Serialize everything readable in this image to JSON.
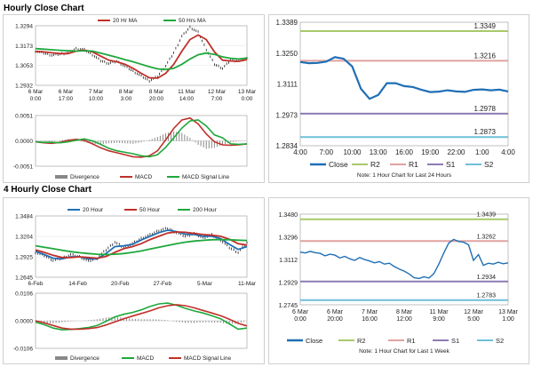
{
  "sections": [
    {
      "title": "Hourly Close Chart"
    },
    {
      "title": "4 Hourly Close Chart"
    }
  ],
  "chart_data": [
    {
      "type": "line",
      "id": "hourly_price",
      "title": "",
      "xlabel": "",
      "ylabel": "",
      "ylim": [
        1.2932,
        1.3294
      ],
      "yticks": [
        "1.3294",
        "1.3173",
        "1.3053",
        "1.2932"
      ],
      "xticks": [
        "6 Mar\n0:00",
        "6 Mar\n17:00",
        "7 Mar\n10:00",
        "8 Mar\n3:00",
        "8 Mar\n20:00",
        "11 Mar\n14:00",
        "12 Mar\n7:00",
        "13 Mar\n0:00"
      ],
      "legend": [
        "20 Hr MA",
        "50 Hrs MA"
      ],
      "series": [
        {
          "name": "Price",
          "color": "#000000",
          "values": [
            1.314,
            1.3128,
            1.3115,
            1.3122,
            1.313,
            1.3155,
            1.3148,
            1.3118,
            1.3082,
            1.3065,
            1.3078,
            1.3048,
            1.3018,
            1.2988,
            1.296,
            1.2985,
            1.305,
            1.313,
            1.323,
            1.3285,
            1.3255,
            1.315,
            1.306,
            1.3035,
            1.3085,
            1.308,
            1.3095
          ]
        },
        {
          "name": "20 Hr MA",
          "color": "#c0302a",
          "values": [
            1.3138,
            1.3135,
            1.313,
            1.3125,
            1.3125,
            1.314,
            1.3146,
            1.3135,
            1.311,
            1.3085,
            1.3075,
            1.306,
            1.3035,
            1.3005,
            1.2978,
            1.2975,
            1.3005,
            1.306,
            1.314,
            1.321,
            1.3238,
            1.321,
            1.3135,
            1.3085,
            1.308,
            1.3078,
            1.3088
          ]
        },
        {
          "name": "50 Hrs MA",
          "color": "#1fa83c",
          "values": [
            1.3155,
            1.3152,
            1.3148,
            1.3145,
            1.3142,
            1.314,
            1.3142,
            1.314,
            1.3128,
            1.3115,
            1.3102,
            1.3088,
            1.3075,
            1.306,
            1.3045,
            1.3032,
            1.3028,
            1.3035,
            1.306,
            1.3092,
            1.3118,
            1.3128,
            1.312,
            1.3105,
            1.3096,
            1.3092,
            1.3098
          ]
        }
      ]
    },
    {
      "type": "line",
      "id": "hourly_macd",
      "ylim": [
        -0.0051,
        0.0051
      ],
      "yticks": [
        "0.0051",
        "0.0000",
        "-0.0051"
      ],
      "legend": [
        "Divergence",
        "MACD",
        "MACD Signal Line"
      ],
      "series": [
        {
          "name": "Divergence",
          "color": "#888888",
          "values": [
            0.0,
            -0.0001,
            -0.0002,
            0.0001,
            0.0003,
            0.0002,
            -0.0003,
            -0.0006,
            -0.0007,
            -0.0005,
            -0.0004,
            -0.0005,
            -0.0006,
            -0.0003,
            0.0002,
            0.0008,
            0.0015,
            0.0019,
            0.0016,
            0.0006,
            -0.0008,
            -0.0016,
            -0.0014,
            -0.0008,
            -0.0003,
            -0.0001,
            0.0
          ]
        },
        {
          "name": "MACD",
          "color": "#c0302a",
          "values": [
            -0.0002,
            -0.0004,
            -0.0005,
            -0.0003,
            0.0001,
            0.0003,
            0.0001,
            -0.0006,
            -0.0014,
            -0.002,
            -0.0024,
            -0.0028,
            -0.0032,
            -0.0033,
            -0.003,
            -0.002,
            0.0002,
            0.0025,
            0.0042,
            0.0046,
            0.0034,
            0.0014,
            -0.0002,
            -0.0008,
            -0.0009,
            -0.0008,
            -0.0006
          ]
        },
        {
          "name": "MACD Signal Line",
          "color": "#1fa83c",
          "values": [
            -0.0002,
            -0.0003,
            -0.0003,
            -0.0004,
            -0.0002,
            0.0001,
            0.0004,
            0.0,
            -0.0007,
            -0.0015,
            -0.002,
            -0.0023,
            -0.0026,
            -0.003,
            -0.0032,
            -0.0028,
            -0.0013,
            0.0006,
            0.0026,
            0.004,
            0.0042,
            0.003,
            0.0012,
            0.0006,
            -0.0006,
            -0.0007,
            -0.0006
          ]
        }
      ]
    },
    {
      "type": "line",
      "id": "hourly_24h",
      "ylim": [
        1.2834,
        1.3389
      ],
      "yticks": [
        "1.3389",
        "1.3250",
        "1.3111",
        "1.2973",
        "1.2834"
      ],
      "xticks": [
        "4:00",
        "7:00",
        "10:00",
        "13:00",
        "16:00",
        "19:00",
        "22:00",
        "1:00",
        "4:00"
      ],
      "legend": [
        "Close",
        "R2",
        "R1",
        "S1",
        "S2"
      ],
      "note": "Note: 1 Hour Chart for Last 24 Hours",
      "levels": [
        {
          "name": "R2",
          "value": 1.3349,
          "label": "1.3349",
          "color": "#a8c96a"
        },
        {
          "name": "R1",
          "value": 1.3216,
          "label": "1.3216",
          "color": "#e0a3a0"
        },
        {
          "name": "S1",
          "value": 1.2978,
          "label": "1.2978",
          "color": "#8e7bb3"
        },
        {
          "name": "S2",
          "value": 1.2873,
          "label": "1.2873",
          "color": "#6fc0d8"
        }
      ],
      "series": [
        {
          "name": "Close",
          "color": "#1f6fb5",
          "values": [
            1.321,
            1.3205,
            1.3206,
            1.3212,
            1.3232,
            1.3225,
            1.319,
            1.309,
            1.3045,
            1.3062,
            1.3115,
            1.3115,
            1.3102,
            1.3098,
            1.3085,
            1.3075,
            1.3077,
            1.3083,
            1.3078,
            1.3076,
            1.3085,
            1.3087,
            1.3083,
            1.3086,
            1.3078
          ]
        }
      ]
    },
    {
      "type": "line",
      "id": "four_hourly_price",
      "ylim": [
        1.2645,
        1.3484
      ],
      "yticks": [
        "1.3484",
        "1.3204",
        "1.2925",
        "1.2645"
      ],
      "xticks": [
        "6-Feb",
        "14-Feb",
        "20-Feb",
        "27-Feb",
        "5-Mar",
        "11-Mar"
      ],
      "legend": [
        "20 Hour",
        "50 Hour",
        "200 Hour"
      ],
      "series": [
        {
          "name": "Price",
          "color": "#000000",
          "values": [
            1.2985,
            1.294,
            1.2875,
            1.2905,
            1.2955,
            1.2925,
            1.2865,
            1.2905,
            1.302,
            1.3125,
            1.3055,
            1.3105,
            1.3175,
            1.3225,
            1.3285,
            1.3315,
            1.3255,
            1.3205,
            1.3245,
            1.3185,
            1.3225,
            1.3155,
            1.305,
            1.2985,
            1.312
          ]
        },
        {
          "name": "20 Hour",
          "color": "#1f6fb5",
          "values": [
            1.3,
            1.2955,
            1.2905,
            1.2895,
            1.2925,
            1.2925,
            1.2895,
            1.2895,
            1.297,
            1.3065,
            1.3075,
            1.3095,
            1.3155,
            1.3205,
            1.3255,
            1.329,
            1.327,
            1.3235,
            1.323,
            1.3205,
            1.3205,
            1.3175,
            1.3095,
            1.3025,
            1.3065
          ]
        },
        {
          "name": "50 Hour",
          "color": "#c0302a",
          "values": [
            1.302,
            1.2985,
            1.2945,
            1.2915,
            1.2915,
            1.2925,
            1.2915,
            1.2905,
            1.293,
            1.2985,
            1.3035,
            1.3065,
            1.3105,
            1.316,
            1.3205,
            1.325,
            1.3265,
            1.326,
            1.3245,
            1.323,
            1.322,
            1.3205,
            1.3165,
            1.3105,
            1.3085
          ]
        },
        {
          "name": "200 Hour",
          "color": "#1fa83c",
          "values": [
            1.3075,
            1.3055,
            1.3035,
            1.3015,
            1.2995,
            1.298,
            1.297,
            1.296,
            1.2955,
            1.296,
            1.297,
            1.2985,
            1.3005,
            1.303,
            1.3055,
            1.308,
            1.3105,
            1.3125,
            1.314,
            1.315,
            1.3158,
            1.316,
            1.3158,
            1.3152,
            1.3148
          ]
        }
      ]
    },
    {
      "type": "line",
      "id": "four_hourly_macd",
      "ylim": [
        -0.0106,
        0.0106
      ],
      "yticks": [
        "0.0106",
        "0.0000",
        "-0.0106"
      ],
      "legend": [
        "Divergence",
        "MACD",
        "MACD Signal Line"
      ],
      "series": [
        {
          "name": "Divergence",
          "color": "#888888",
          "values": [
            -0.0004,
            -0.0008,
            -0.001,
            -0.0006,
            -0.0002,
            0.0,
            0.0002,
            0.0006,
            0.0012,
            0.0016,
            0.0012,
            0.0008,
            0.0006,
            0.0006,
            0.0005,
            0.0002,
            -0.0004,
            -0.0008,
            -0.0008,
            -0.0006,
            -0.0006,
            -0.0008,
            -0.0012,
            -0.001,
            0.0
          ]
        },
        {
          "name": "MACD",
          "color": "#1fa83c",
          "values": [
            -0.0005,
            -0.0015,
            -0.0028,
            -0.0035,
            -0.0033,
            -0.003,
            -0.0026,
            -0.0018,
            -0.0002,
            0.0015,
            0.0025,
            0.0032,
            0.0042,
            0.0055,
            0.0065,
            0.0068,
            0.006,
            0.0048,
            0.0038,
            0.003,
            0.002,
            0.0008,
            -0.0012,
            -0.0032,
            -0.0028
          ]
        },
        {
          "name": "MACD Signal Line",
          "color": "#c0302a",
          "values": [
            0.0,
            -0.0008,
            -0.0018,
            -0.0028,
            -0.0032,
            -0.0032,
            -0.003,
            -0.0026,
            -0.0016,
            -0.0004,
            0.0008,
            0.0018,
            0.0028,
            0.0038,
            0.005,
            0.0058,
            0.0062,
            0.0058,
            0.005,
            0.004,
            0.003,
            0.002,
            0.0006,
            -0.001,
            -0.002
          ]
        }
      ]
    },
    {
      "type": "line",
      "id": "four_hourly_week",
      "ylim": [
        1.2745,
        1.348
      ],
      "yticks": [
        "1.3480",
        "1.3296",
        "1.3112",
        "1.2929",
        "1.2745"
      ],
      "xticks": [
        "6 Mar\n0:00",
        "6 Mar\n20:00",
        "7 Mar\n16:00",
        "8 Mar\n12:00",
        "11 Mar\n9:00",
        "12 Mar\n5:00",
        "13 Mar\n1:00"
      ],
      "legend": [
        "Close",
        "R2",
        "R1",
        "S1",
        "S2"
      ],
      "note": "Note: 1 Hour Chart for Last 1 Week",
      "levels": [
        {
          "name": "R2",
          "value": 1.3439,
          "label": "1.3439",
          "color": "#a8c96a"
        },
        {
          "name": "R1",
          "value": 1.3262,
          "label": "1.3262",
          "color": "#e0a3a0"
        },
        {
          "name": "S1",
          "value": 1.2934,
          "label": "1.2934",
          "color": "#8e7bb3"
        },
        {
          "name": "S2",
          "value": 1.2783,
          "label": "1.2783",
          "color": "#6fc0d8"
        }
      ],
      "series": [
        {
          "name": "Close",
          "color": "#1f6fb5",
          "values": [
            1.3172,
            1.3165,
            1.3178,
            1.3168,
            1.3162,
            1.3142,
            1.3155,
            1.3148,
            1.3125,
            1.3138,
            1.3118,
            1.3105,
            1.3128,
            1.3112,
            1.31,
            1.3085,
            1.3095,
            1.3075,
            1.3082,
            1.3055,
            1.3035,
            1.3018,
            1.2995,
            1.2965,
            1.2958,
            1.2972,
            1.2962,
            1.2998,
            1.3075,
            1.3165,
            1.3245,
            1.3275,
            1.3258,
            1.3252,
            1.3232,
            1.3105,
            1.3152,
            1.3065,
            1.3082,
            1.3075,
            1.309,
            1.3078,
            1.3085
          ]
        }
      ]
    }
  ]
}
